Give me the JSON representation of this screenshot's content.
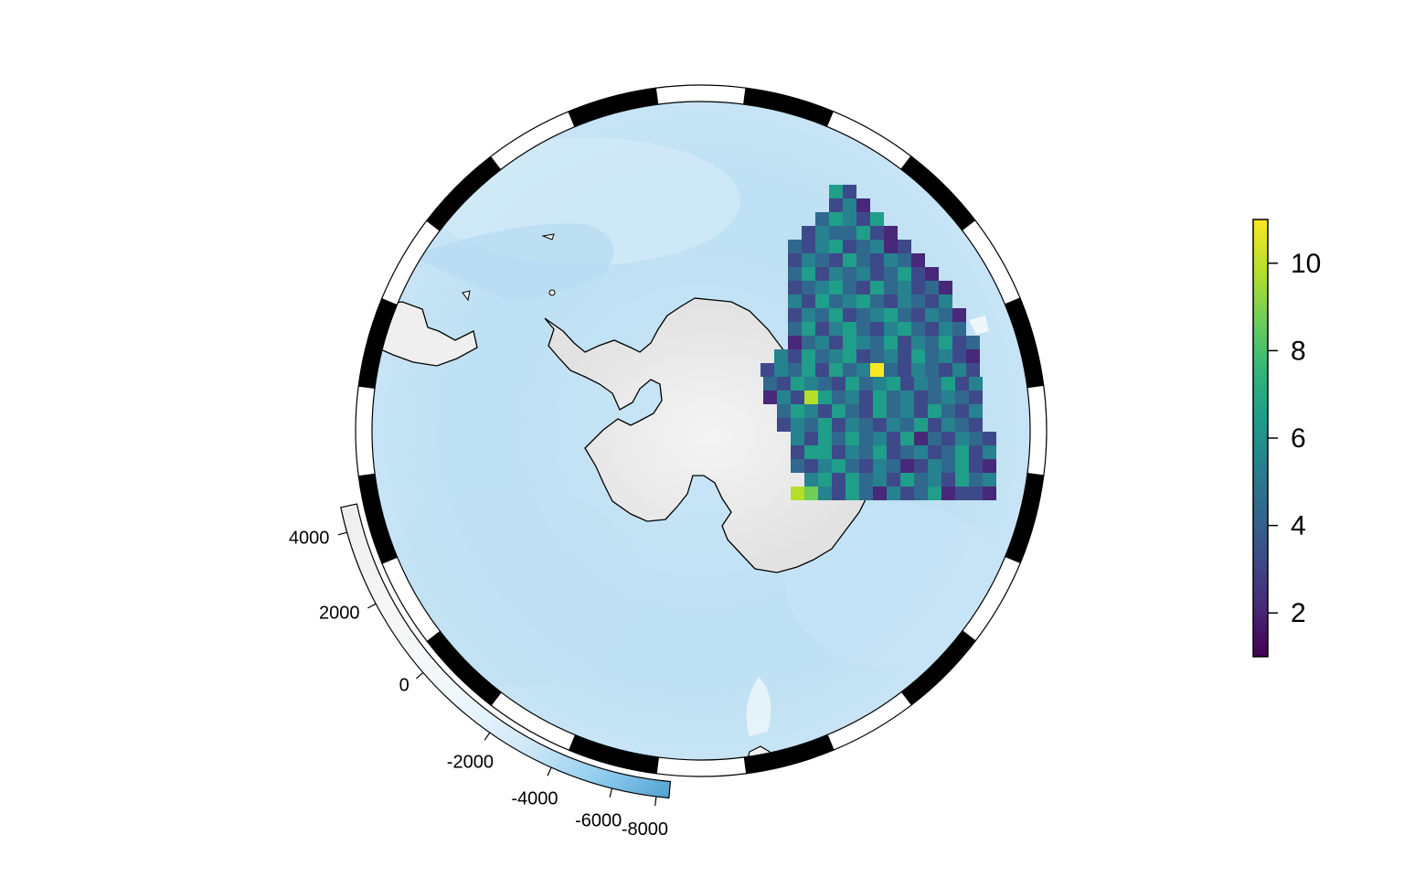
{
  "colors": {
    "ocean": "#bfe0f3",
    "ocean_light": "#d9edf8",
    "land": "#ececec",
    "ring_black": "#000000",
    "ring_white": "#ffffff",
    "coast": "#000000",
    "bathy_gradient": [
      "#ededed",
      "#f7f7f7",
      "#f4fafd",
      "#d7ecf8",
      "#a9d8f3",
      "#6fbfec",
      "#4a9fd2"
    ]
  },
  "depth_legend": {
    "labels": [
      "4000",
      "2000",
      "0",
      "-2000",
      "-4000",
      "-6000",
      "-8000"
    ]
  },
  "colorbar": {
    "labels": [
      "10",
      "8",
      "6",
      "4",
      "2"
    ],
    "values": [
      10,
      8,
      6,
      4,
      2
    ],
    "range": [
      1,
      11
    ],
    "palette": [
      "#440154",
      "#482878",
      "#3e4989",
      "#31688e",
      "#26828e",
      "#1f9e89",
      "#35b779",
      "#6ece58",
      "#b5de2b",
      "#fde725"
    ]
  },
  "chart_data": {
    "type": "heatmap",
    "description_units": "count per grid cell",
    "value_range": [
      1,
      11
    ],
    "grid_rows": [
      [
        6,
        3
      ],
      [
        3,
        5,
        2
      ],
      [
        4,
        6,
        5,
        3,
        6
      ],
      [
        3,
        5,
        4,
        4,
        6,
        3,
        2
      ],
      [
        4,
        3,
        5,
        6,
        3,
        4,
        5,
        2,
        3
      ],
      [
        3,
        5,
        4,
        3,
        6,
        4,
        3,
        5,
        4,
        2
      ],
      [
        4,
        6,
        3,
        5,
        4,
        5,
        3,
        4,
        6,
        3,
        2
      ],
      [
        3,
        4,
        5,
        7,
        4,
        3,
        6,
        4,
        5,
        3,
        4,
        2
      ],
      [
        5,
        3,
        6,
        4,
        5,
        6,
        4,
        3,
        5,
        4,
        3,
        5
      ],
      [
        3,
        5,
        4,
        6,
        3,
        4,
        5,
        7,
        4,
        3,
        5,
        4,
        2
      ],
      [
        4,
        6,
        3,
        5,
        7,
        4,
        3,
        5,
        6,
        4,
        3,
        5,
        4
      ],
      [
        2,
        4,
        5,
        3,
        6,
        5,
        4,
        6,
        3,
        5,
        4,
        6,
        3,
        4
      ],
      [
        5,
        3,
        6,
        4,
        5,
        7,
        3,
        4,
        5,
        3,
        6,
        4,
        5,
        3,
        2
      ],
      [
        3,
        5,
        4,
        7,
        3,
        6,
        4,
        5,
        11,
        4,
        3,
        5,
        4,
        3,
        5,
        3
      ],
      [
        4,
        3,
        6,
        5,
        4,
        3,
        7,
        4,
        5,
        6,
        3,
        5,
        4,
        6,
        3,
        5
      ],
      [
        2,
        5,
        3,
        10,
        6,
        4,
        5,
        3,
        6,
        4,
        5,
        3,
        4,
        5,
        4,
        3
      ],
      [
        4,
        6,
        5,
        3,
        7,
        4,
        3,
        6,
        4,
        5,
        3,
        6,
        4,
        3,
        5
      ],
      [
        3,
        5,
        4,
        6,
        3,
        5,
        4,
        3,
        5,
        4,
        6,
        3,
        5,
        4,
        3
      ],
      [
        5,
        3,
        6,
        4,
        7,
        4,
        5,
        3,
        6,
        2,
        4,
        3,
        5,
        4,
        3
      ],
      [
        3,
        6,
        7,
        3,
        5,
        4,
        6,
        3,
        4,
        5,
        3,
        4,
        6,
        3,
        5
      ],
      [
        4,
        3,
        5,
        6,
        4,
        3,
        5,
        4,
        2,
        3,
        5,
        4,
        6,
        3,
        2
      ],
      [
        5,
        7,
        3,
        6,
        4,
        5,
        3,
        6,
        4,
        5,
        3,
        7,
        4,
        5
      ],
      [
        10,
        9,
        5,
        3,
        6,
        4,
        2,
        5,
        3,
        4,
        6,
        2,
        3,
        3,
        2
      ]
    ]
  }
}
